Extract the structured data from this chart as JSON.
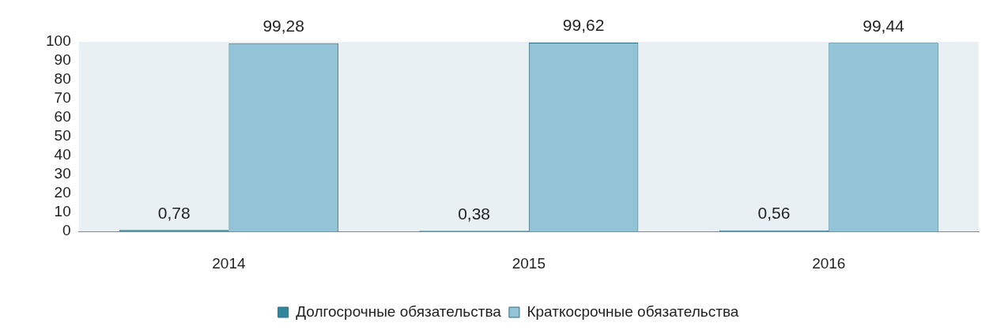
{
  "chart_data": {
    "type": "bar",
    "categories": [
      "2014",
      "2015",
      "2016"
    ],
    "series": [
      {
        "name": "Долгосрочные обязательства",
        "color": "#31859c",
        "values": [
          0.78,
          0.38,
          0.56
        ],
        "value_labels": [
          "0,78",
          "0,38",
          "0,56"
        ]
      },
      {
        "name": "Краткосрочные обязательства",
        "color": "#93c3d6",
        "values": [
          99.28,
          99.62,
          99.44
        ],
        "value_labels": [
          "99,28",
          "99,62",
          "99,44"
        ]
      }
    ],
    "ylim": [
      0,
      100
    ],
    "yticks": [
      0,
      10,
      20,
      30,
      40,
      50,
      60,
      70,
      80,
      90,
      100
    ],
    "grid": false,
    "legend": "bottom"
  }
}
